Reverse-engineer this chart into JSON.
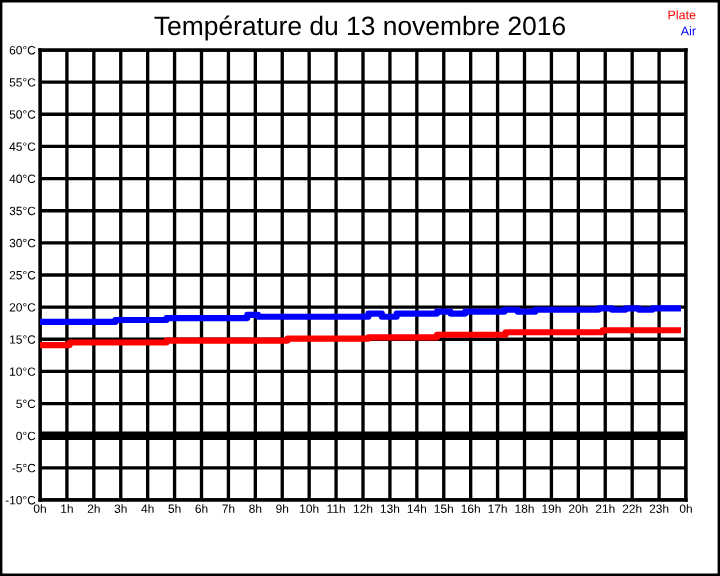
{
  "chart_data": {
    "type": "step",
    "title": "Température du 13 novembre 2016",
    "series": [
      {
        "name": "Plate",
        "color": "#ff0000",
        "x": [
          "2016-11-13T00:00",
          "2016-11-13T01:06",
          "2016-11-13T04:42",
          "2016-11-13T09:12",
          "2016-11-13T12:12",
          "2016-11-13T14:45",
          "2016-11-13T17:18",
          "2016-11-13T20:54",
          "2016-11-13T23:42"
        ],
        "values": [
          14.1,
          14.5,
          14.8,
          15.1,
          15.3,
          15.7,
          16.1,
          16.4,
          16.4
        ]
      },
      {
        "name": "Air",
        "color": "#0000ff",
        "x": [
          "2016-11-13T00:00",
          "2016-11-13T02:48",
          "2016-11-13T04:42",
          "2016-11-13T07:42",
          "2016-11-13T08:06",
          "2016-11-13T12:12",
          "2016-11-13T12:42",
          "2016-11-13T13:15",
          "2016-11-13T14:45",
          "2016-11-13T15:15",
          "2016-11-13T15:48",
          "2016-11-13T17:15",
          "2016-11-13T17:45",
          "2016-11-13T18:24",
          "2016-11-13T20:45",
          "2016-11-13T21:15",
          "2016-11-13T21:45",
          "2016-11-13T22:15",
          "2016-11-13T22:45",
          "2016-11-13T23:42"
        ],
        "values": [
          17.7,
          18.0,
          18.3,
          18.8,
          18.5,
          19.0,
          18.5,
          19.0,
          19.3,
          19.0,
          19.3,
          19.6,
          19.3,
          19.6,
          19.8,
          19.6,
          19.8,
          19.6,
          19.8,
          19.8
        ]
      }
    ],
    "xlim": [
      "2016-11-13T00:00",
      "2016-11-14T00:00"
    ],
    "xticks": [
      {
        "value": "2016-11-13T00:00",
        "label": "0h"
      },
      {
        "value": "2016-11-13T01:00",
        "label": "1h"
      },
      {
        "value": "2016-11-13T02:00",
        "label": "2h"
      },
      {
        "value": "2016-11-13T03:00",
        "label": "3h"
      },
      {
        "value": "2016-11-13T04:00",
        "label": "4h"
      },
      {
        "value": "2016-11-13T05:00",
        "label": "5h"
      },
      {
        "value": "2016-11-13T06:00",
        "label": "6h"
      },
      {
        "value": "2016-11-13T07:00",
        "label": "7h"
      },
      {
        "value": "2016-11-13T08:00",
        "label": "8h"
      },
      {
        "value": "2016-11-13T09:00",
        "label": "9h"
      },
      {
        "value": "2016-11-13T10:00",
        "label": "10h"
      },
      {
        "value": "2016-11-13T11:00",
        "label": "11h"
      },
      {
        "value": "2016-11-13T12:00",
        "label": "12h"
      },
      {
        "value": "2016-11-13T13:00",
        "label": "13h"
      },
      {
        "value": "2016-11-13T14:00",
        "label": "14h"
      },
      {
        "value": "2016-11-13T15:00",
        "label": "15h"
      },
      {
        "value": "2016-11-13T16:00",
        "label": "16h"
      },
      {
        "value": "2016-11-13T17:00",
        "label": "17h"
      },
      {
        "value": "2016-11-13T18:00",
        "label": "18h"
      },
      {
        "value": "2016-11-13T19:00",
        "label": "19h"
      },
      {
        "value": "2016-11-13T20:00",
        "label": "20h"
      },
      {
        "value": "2016-11-13T21:00",
        "label": "21h"
      },
      {
        "value": "2016-11-13T22:00",
        "label": "22h"
      },
      {
        "value": "2016-11-13T23:00",
        "label": "23h"
      },
      {
        "value": "2016-11-14T00:00",
        "label": "0h"
      }
    ],
    "ylim": [
      -10,
      60
    ],
    "yticks": [
      {
        "value": -10,
        "label": "-10°C"
      },
      {
        "value": -5,
        "label": "-5°C"
      },
      {
        "value": 0,
        "label": "0°C"
      },
      {
        "value": 5,
        "label": "5°C"
      },
      {
        "value": 10,
        "label": "10°C"
      },
      {
        "value": 15,
        "label": "15°C"
      },
      {
        "value": 20,
        "label": "20°C"
      },
      {
        "value": 25,
        "label": "25°C"
      },
      {
        "value": 30,
        "label": "30°C"
      },
      {
        "value": 35,
        "label": "35°C"
      },
      {
        "value": 40,
        "label": "40°C"
      },
      {
        "value": 45,
        "label": "45°C"
      },
      {
        "value": 50,
        "label": "50°C"
      },
      {
        "value": 55,
        "label": "55°C"
      },
      {
        "value": 60,
        "label": "60°C"
      }
    ],
    "ref_lines": [
      {
        "axis": "y",
        "value": 0,
        "color": "#000000"
      }
    ],
    "grid": true,
    "legend": "top right"
  }
}
